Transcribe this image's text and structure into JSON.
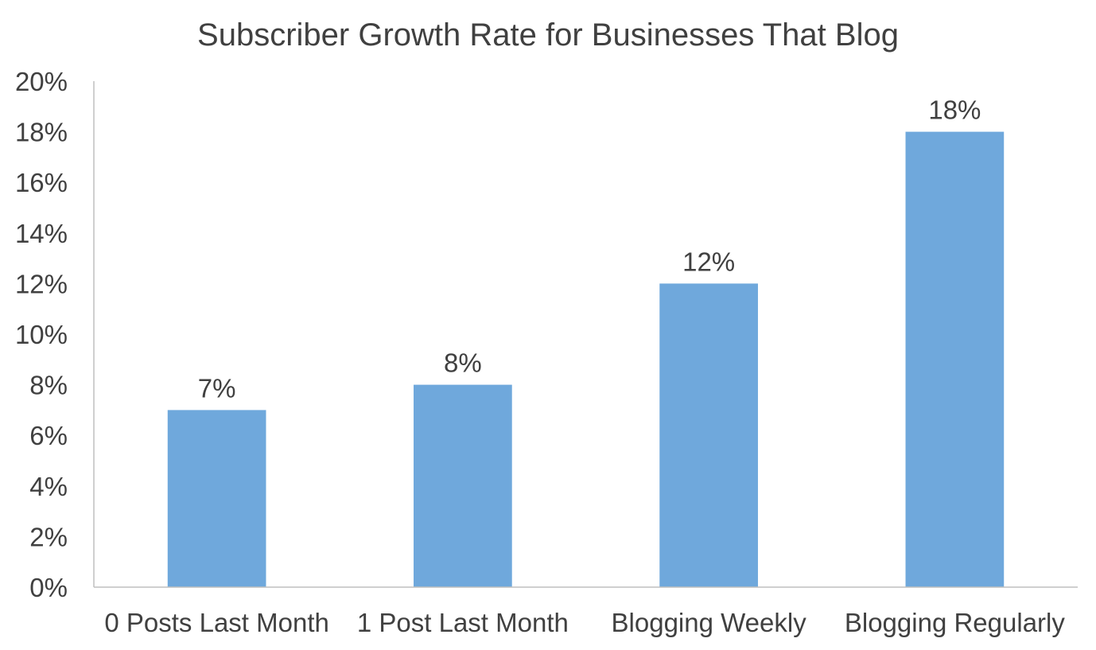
{
  "chart_data": {
    "type": "bar",
    "title": "Subscriber Growth Rate for Businesses That Blog",
    "xlabel": "",
    "ylabel": "",
    "categories": [
      "0 Posts Last Month",
      "1 Post Last Month",
      "Blogging Weekly",
      "Blogging Regularly"
    ],
    "values": [
      7,
      8,
      12,
      18
    ],
    "value_labels": [
      "7%",
      "8%",
      "12%",
      "18%"
    ],
    "ylim": [
      0,
      20
    ],
    "y_ticks": [
      0,
      2,
      4,
      6,
      8,
      10,
      12,
      14,
      16,
      18,
      20
    ],
    "y_tick_labels": [
      "0%",
      "2%",
      "4%",
      "6%",
      "8%",
      "10%",
      "12%",
      "14%",
      "16%",
      "18%",
      "20%"
    ],
    "grid": false,
    "legend": "none",
    "bar_color": "#6fa8dc",
    "text_color": "#404040",
    "axis_color": "#bfbfbf"
  }
}
